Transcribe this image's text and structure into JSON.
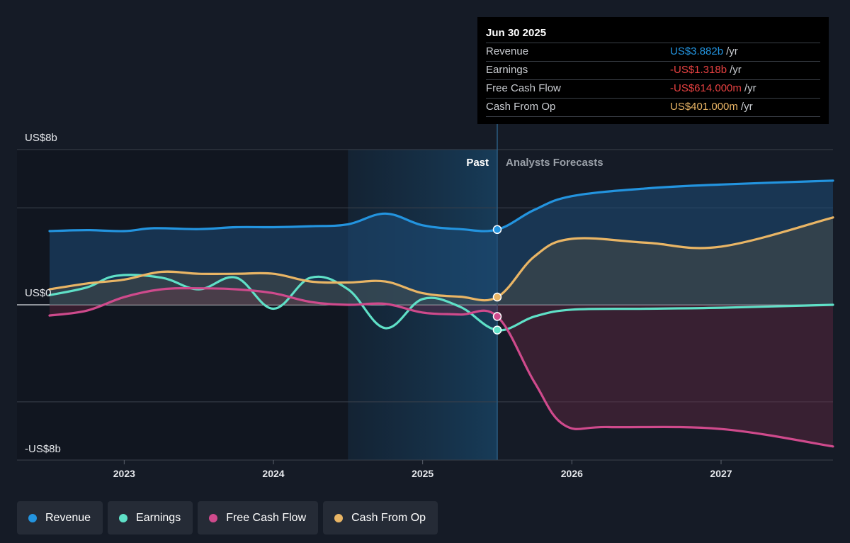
{
  "tooltip": {
    "date": "Jun 30 2025",
    "rows": [
      {
        "label": "Revenue",
        "value": "US$3.882b",
        "unit": "/yr",
        "color": "#2394df"
      },
      {
        "label": "Earnings",
        "value": "-US$1.318b",
        "unit": "/yr",
        "color": "#e64141"
      },
      {
        "label": "Free Cash Flow",
        "value": "-US$614.000m",
        "unit": "/yr",
        "color": "#e64141"
      },
      {
        "label": "Cash From Op",
        "value": "US$401.000m",
        "unit": "/yr",
        "color": "#e9b565"
      }
    ]
  },
  "legend": [
    {
      "label": "Revenue",
      "color": "#2394df"
    },
    {
      "label": "Earnings",
      "color": "#5fe0c7"
    },
    {
      "label": "Free Cash Flow",
      "color": "#cf4a8c"
    },
    {
      "label": "Cash From Op",
      "color": "#e9b565"
    }
  ],
  "chart_data": {
    "type": "line",
    "y_axis_labels": [
      "US$8b",
      "US$0",
      "-US$8b"
    ],
    "ylim": [
      -8,
      8
    ],
    "xlim": [
      2022.5,
      2027.75
    ],
    "x_ticks": [
      {
        "value": 2023.0,
        "label": "2023"
      },
      {
        "value": 2024.0,
        "label": "2024"
      },
      {
        "value": 2025.0,
        "label": "2025"
      },
      {
        "value": 2026.0,
        "label": "2026"
      },
      {
        "value": 2027.0,
        "label": "2027"
      }
    ],
    "period_labels": {
      "past": "Past",
      "forecast": "Analysts Forecasts"
    },
    "divider_x": 2025.5,
    "highlight_start_x": 2024.5,
    "grid": true,
    "series": [
      {
        "name": "Revenue",
        "color": "#2394df",
        "fill": true,
        "points": [
          [
            2022.5,
            3.8
          ],
          [
            2022.75,
            3.85
          ],
          [
            2023.0,
            3.8
          ],
          [
            2023.2,
            3.95
          ],
          [
            2023.5,
            3.9
          ],
          [
            2023.75,
            4.0
          ],
          [
            2024.0,
            4.0
          ],
          [
            2024.25,
            4.05
          ],
          [
            2024.5,
            4.15
          ],
          [
            2024.75,
            4.7
          ],
          [
            2025.0,
            4.1
          ],
          [
            2025.25,
            3.9
          ],
          [
            2025.5,
            3.88
          ],
          [
            2025.75,
            4.9
          ],
          [
            2026.0,
            5.6
          ],
          [
            2026.5,
            6.0
          ],
          [
            2027.0,
            6.2
          ],
          [
            2027.75,
            6.4
          ]
        ]
      },
      {
        "name": "Earnings",
        "color": "#5fe0c7",
        "fill": false,
        "points": [
          [
            2022.5,
            0.5
          ],
          [
            2022.75,
            0.9
          ],
          [
            2022.95,
            1.5
          ],
          [
            2023.25,
            1.4
          ],
          [
            2023.5,
            0.8
          ],
          [
            2023.75,
            1.4
          ],
          [
            2024.0,
            -0.2
          ],
          [
            2024.25,
            1.4
          ],
          [
            2024.5,
            0.8
          ],
          [
            2024.75,
            -1.2
          ],
          [
            2025.0,
            0.3
          ],
          [
            2025.25,
            -0.1
          ],
          [
            2025.5,
            -1.3
          ],
          [
            2025.75,
            -0.6
          ],
          [
            2026.0,
            -0.25
          ],
          [
            2026.5,
            -0.2
          ],
          [
            2027.0,
            -0.15
          ],
          [
            2027.75,
            0.0
          ]
        ]
      },
      {
        "name": "Free Cash Flow",
        "color": "#cf4a8c",
        "fill": true,
        "points": [
          [
            2022.5,
            -0.55
          ],
          [
            2022.75,
            -0.3
          ],
          [
            2023.0,
            0.4
          ],
          [
            2023.25,
            0.8
          ],
          [
            2023.5,
            0.85
          ],
          [
            2023.75,
            0.8
          ],
          [
            2024.0,
            0.6
          ],
          [
            2024.25,
            0.15
          ],
          [
            2024.5,
            0.0
          ],
          [
            2024.75,
            0.05
          ],
          [
            2025.0,
            -0.4
          ],
          [
            2025.25,
            -0.5
          ],
          [
            2025.5,
            -0.6
          ],
          [
            2025.75,
            -4.0
          ],
          [
            2025.95,
            -6.2
          ],
          [
            2026.25,
            -6.3
          ],
          [
            2027.0,
            -6.4
          ],
          [
            2027.75,
            -7.3
          ]
        ]
      },
      {
        "name": "Cash From Op",
        "color": "#e9b565",
        "fill": true,
        "points": [
          [
            2022.5,
            0.8
          ],
          [
            2022.75,
            1.1
          ],
          [
            2023.0,
            1.3
          ],
          [
            2023.25,
            1.7
          ],
          [
            2023.5,
            1.6
          ],
          [
            2023.75,
            1.6
          ],
          [
            2024.0,
            1.6
          ],
          [
            2024.25,
            1.2
          ],
          [
            2024.5,
            1.15
          ],
          [
            2024.75,
            1.2
          ],
          [
            2025.0,
            0.6
          ],
          [
            2025.25,
            0.42
          ],
          [
            2025.5,
            0.4
          ],
          [
            2025.75,
            2.5
          ],
          [
            2026.0,
            3.4
          ],
          [
            2026.5,
            3.2
          ],
          [
            2027.0,
            3.0
          ],
          [
            2027.75,
            4.5
          ]
        ]
      }
    ]
  }
}
